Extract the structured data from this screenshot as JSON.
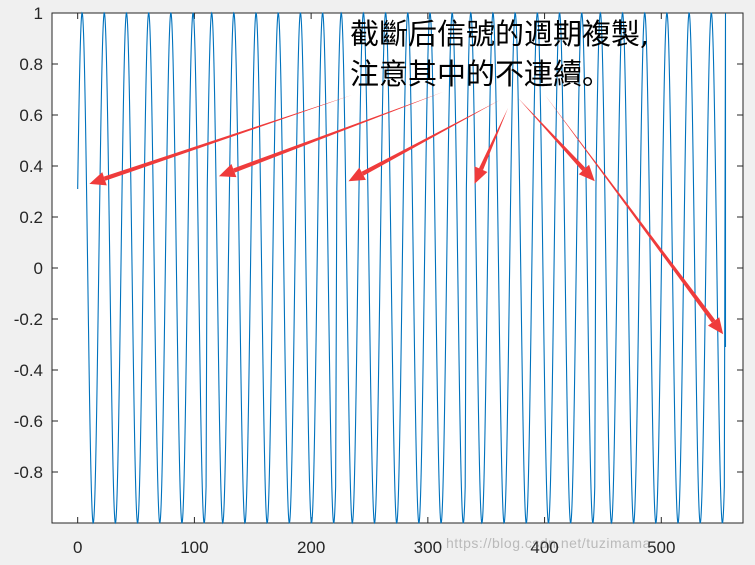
{
  "chart_data": {
    "type": "line",
    "title": "",
    "xlabel": "",
    "ylabel": "",
    "xlim": [
      -22,
      570
    ],
    "ylim": [
      -1,
      1
    ],
    "grid": false,
    "series_color": "#0072BD",
    "arrow_color": "#ef3b3b",
    "x_ticks": [
      0,
      100,
      200,
      300,
      400,
      500
    ],
    "x_tick_labels": [
      "0",
      "100",
      "200",
      "300",
      "400",
      "500"
    ],
    "y_ticks": [
      1,
      0.8,
      0.6,
      0.4,
      0.2,
      0,
      -0.2,
      -0.4,
      -0.6,
      -0.8
    ],
    "y_tick_labels": [
      "1",
      "0.8",
      "0.6",
      "0.4",
      "0.2",
      "0",
      "-0.2",
      "-0.4",
      "-0.6",
      "-0.8"
    ],
    "signal": {
      "description_of_series": "periodic extension of a truncated sinusoid",
      "amplitude": 1,
      "cycles_per_sample": 0.0526,
      "start_value": 0.31,
      "segment_length": 111,
      "segment_starts": [
        0,
        111,
        222,
        333,
        444
      ],
      "x_end": 555,
      "end_value": -0.31
    },
    "discontinuity_arrow_targets": [
      {
        "x": 10,
        "y": 0.33
      },
      {
        "x": 121,
        "y": 0.36
      },
      {
        "x": 232,
        "y": 0.34
      },
      {
        "x": 340,
        "y": 0.33
      },
      {
        "x": 443,
        "y": 0.34
      },
      {
        "x": 553,
        "y": -0.26
      }
    ],
    "annotation_lines": [
      "截斷后信號的週期複製,",
      "注意其中的不連續。"
    ]
  },
  "watermark": "https://blog.csdn.net/tuzimama"
}
